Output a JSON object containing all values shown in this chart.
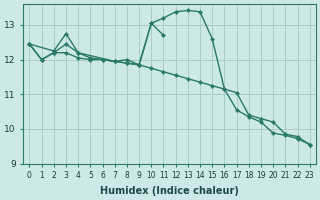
{
  "background_color": "#cce8e8",
  "grid_color": "#aacccc",
  "line_color": "#2a7a6a",
  "xlabel": "Humidex (Indice chaleur)",
  "xlim": [
    -0.5,
    23.5
  ],
  "ylim": [
    9.0,
    13.6
  ],
  "yticks": [
    9,
    10,
    11,
    12,
    13
  ],
  "xticks": [
    0,
    1,
    2,
    3,
    4,
    5,
    6,
    7,
    8,
    9,
    10,
    11,
    12,
    13,
    14,
    15,
    16,
    17,
    18,
    19,
    20,
    21,
    22,
    23
  ],
  "line1_x": [
    0,
    1,
    2,
    3,
    4,
    5,
    6,
    7,
    8,
    9,
    10,
    11,
    12,
    13,
    14,
    15,
    16,
    17,
    18,
    19,
    20,
    21,
    22,
    23
  ],
  "line1_y": [
    12.45,
    12.0,
    12.2,
    12.2,
    12.05,
    12.0,
    12.0,
    11.95,
    11.9,
    11.85,
    11.75,
    11.65,
    11.55,
    11.45,
    11.35,
    11.25,
    11.15,
    11.05,
    10.4,
    10.3,
    10.2,
    9.85,
    9.78,
    9.55
  ],
  "line2_x": [
    0,
    1,
    2,
    3,
    4,
    5,
    6,
    7,
    8,
    9,
    10,
    11,
    12,
    13,
    14,
    15,
    16,
    17,
    18,
    19,
    20,
    21,
    22,
    23
  ],
  "line2_y": [
    12.45,
    12.0,
    12.2,
    12.45,
    12.2,
    12.05,
    12.0,
    11.95,
    11.9,
    11.85,
    13.05,
    13.2,
    13.38,
    13.42,
    13.38,
    12.6,
    11.15,
    10.55,
    10.35,
    10.2,
    9.88,
    9.82,
    9.72,
    9.55
  ],
  "line3_x": [
    0,
    2,
    3,
    4,
    7,
    8,
    9,
    10,
    11
  ],
  "line3_y": [
    12.45,
    12.25,
    12.75,
    12.2,
    11.95,
    12.0,
    11.85,
    13.05,
    12.7
  ],
  "marker_size": 2.5,
  "linewidth": 1.0,
  "xlabel_fontsize": 7,
  "tick_fontsize": 5.5,
  "ytick_fontsize": 6.5
}
